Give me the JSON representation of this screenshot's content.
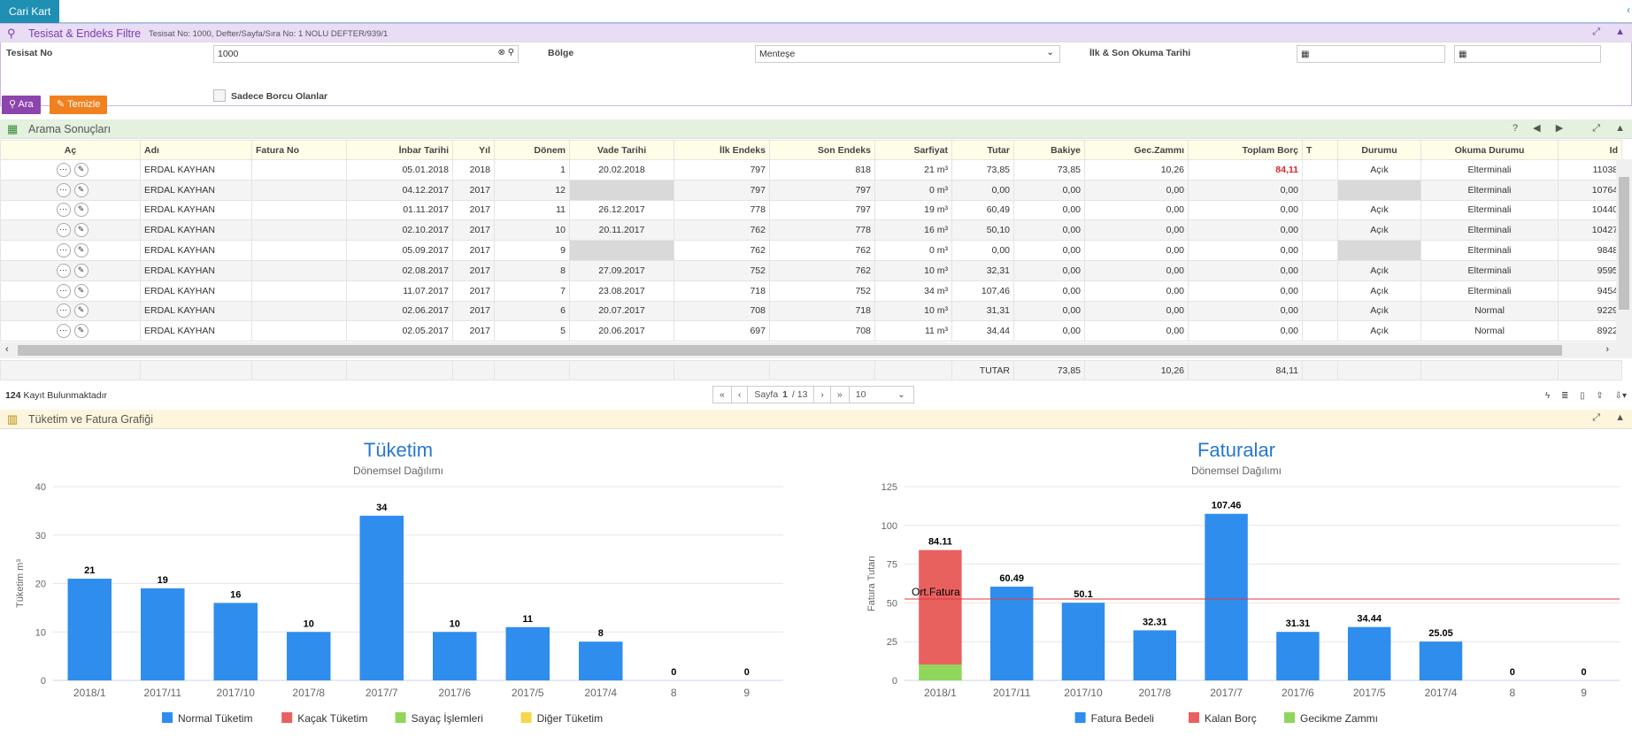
{
  "top_tab": "Cari Kart",
  "filter": {
    "title": "Tesisat & Endeks Filtre",
    "subtitle": "Tesisat No: 1000, Defter/Sayfa/Sıra No: 1 NOLU DEFTER/939/1",
    "tesisat_label": "Tesisat No",
    "tesisat_value": "1000",
    "bolge_label": "Bölge",
    "bolge_value": "Menteşe",
    "okuma_label": "İlk & Son Okuma Tarihi",
    "borclu_label": "Sadece Borcu Olanlar",
    "ara": "Ara",
    "temizle": "Temizle"
  },
  "results": {
    "title": "Arama Sonuçları",
    "columns": [
      "Aç",
      "Adı",
      "Fatura No",
      "İnbar Tarihi",
      "Yıl",
      "Dönem",
      "Vade Tarihi",
      "İlk Endeks",
      "Son Endeks",
      "Sarfiyat",
      "Tutar",
      "Bakiye",
      "Gec.Zammı",
      "Toplam Borç",
      "T",
      "Durumu",
      "Okuma Durumu",
      "Id"
    ],
    "rows": [
      [
        "ERDAL KAYHAN",
        "",
        "05.01.2018",
        "2018",
        "1",
        "20.02.2018",
        "797",
        "818",
        "21 m³",
        "73,85",
        "73,85",
        "10,26",
        "84,11",
        "",
        "Açık",
        "Elterminali",
        "11038"
      ],
      [
        "ERDAL KAYHAN",
        "",
        "04.12.2017",
        "2017",
        "12",
        "",
        "797",
        "797",
        "0 m³",
        "0,00",
        "0,00",
        "0,00",
        "0,00",
        "",
        "",
        "Elterminali",
        "10764"
      ],
      [
        "ERDAL KAYHAN",
        "",
        "01.11.2017",
        "2017",
        "11",
        "26.12.2017",
        "778",
        "797",
        "19 m³",
        "60,49",
        "0,00",
        "0,00",
        "0,00",
        "",
        "Açık",
        "Elterminali",
        "10440"
      ],
      [
        "ERDAL KAYHAN",
        "",
        "02.10.2017",
        "2017",
        "10",
        "20.11.2017",
        "762",
        "778",
        "16 m³",
        "50,10",
        "0,00",
        "0,00",
        "0,00",
        "",
        "Açık",
        "Elterminali",
        "10427"
      ],
      [
        "ERDAL KAYHAN",
        "",
        "05.09.2017",
        "2017",
        "9",
        "",
        "762",
        "762",
        "0 m³",
        "0,00",
        "0,00",
        "0,00",
        "0,00",
        "",
        "",
        "Elterminali",
        "9848"
      ],
      [
        "ERDAL KAYHAN",
        "",
        "02.08.2017",
        "2017",
        "8",
        "27.09.2017",
        "752",
        "762",
        "10 m³",
        "32,31",
        "0,00",
        "0,00",
        "0,00",
        "",
        "Açık",
        "Elterminali",
        "9595"
      ],
      [
        "ERDAL KAYHAN",
        "",
        "11.07.2017",
        "2017",
        "7",
        "23.08.2017",
        "718",
        "752",
        "34 m³",
        "107,46",
        "0,00",
        "0,00",
        "0,00",
        "",
        "Açık",
        "Elterminali",
        "9454"
      ],
      [
        "ERDAL KAYHAN",
        "",
        "02.06.2017",
        "2017",
        "6",
        "20.07.2017",
        "708",
        "718",
        "10 m³",
        "31,31",
        "0,00",
        "0,00",
        "0,00",
        "",
        "Açık",
        "Normal",
        "9229"
      ],
      [
        "ERDAL KAYHAN",
        "",
        "02.05.2017",
        "2017",
        "5",
        "20.06.2017",
        "697",
        "708",
        "11 m³",
        "34,44",
        "0,00",
        "0,00",
        "0,00",
        "",
        "Açık",
        "Normal",
        "8922"
      ]
    ],
    "totals": {
      "label": "TUTAR",
      "bakiye": "73,85",
      "gec": "10,26",
      "toplam": "84,11"
    },
    "count_num": "124",
    "count_text": "Kayıt Bulunmaktadır",
    "pager": {
      "first": "«",
      "prev": "‹",
      "page_label": "Sayfa",
      "page": "1",
      "of": "/ 13",
      "next": "›",
      "last": "»",
      "size": "10"
    }
  },
  "chart_panel_title": "Tüketim ve Fatura Grafiği",
  "chart_data": [
    {
      "type": "bar",
      "title": "Tüketim",
      "subtitle": "Dönemsel Dağılımı",
      "ylabel": "Tüketim m³",
      "ylim": [
        0,
        40
      ],
      "yticks": [
        0,
        10,
        20,
        30,
        40
      ],
      "categories": [
        "2018/1",
        "2017/11",
        "2017/10",
        "2017/8",
        "2017/7",
        "2017/6",
        "2017/5",
        "2017/4",
        "8",
        "9"
      ],
      "series": [
        {
          "name": "Normal Tüketim",
          "color": "#2f8ded",
          "values": [
            21,
            19,
            16,
            10,
            34,
            10,
            11,
            8,
            0,
            0
          ]
        },
        {
          "name": "Kaçak Tüketim",
          "color": "#e8615f",
          "values": [
            0,
            0,
            0,
            0,
            0,
            0,
            0,
            0,
            0,
            0
          ]
        },
        {
          "name": "Sayaç İşlemleri",
          "color": "#90d65a",
          "values": [
            0,
            0,
            0,
            0,
            0,
            0,
            0,
            0,
            0,
            0
          ]
        },
        {
          "name": "Diğer Tüketim",
          "color": "#f5d84a",
          "values": [
            0,
            0,
            0,
            0,
            0,
            0,
            0,
            0,
            0,
            0
          ]
        }
      ],
      "labels": [
        "21",
        "19",
        "16",
        "10",
        "34",
        "10",
        "11",
        "8",
        "0",
        "0"
      ]
    },
    {
      "type": "bar",
      "title": "Faturalar",
      "subtitle": "Dönemsel Dağılımı",
      "ylabel": "Fatura Tutarı",
      "ylim": [
        0,
        125
      ],
      "yticks": [
        0,
        25,
        50,
        75,
        100,
        125
      ],
      "categories": [
        "2018/1",
        "2017/11",
        "2017/10",
        "2017/8",
        "2017/7",
        "2017/6",
        "2017/5",
        "2017/4",
        "8",
        "9"
      ],
      "series": [
        {
          "name": "Fatura Bedeli",
          "color": "#2f8ded",
          "values": [
            0,
            60.49,
            50.1,
            32.31,
            107.46,
            31.31,
            34.44,
            25.05,
            0,
            0
          ]
        },
        {
          "name": "Kalan Borç",
          "color": "#e8615f",
          "values": [
            73.85,
            0,
            0,
            0,
            0,
            0,
            0,
            0,
            0,
            0
          ]
        },
        {
          "name": "Gecikme Zammı",
          "color": "#90d65a",
          "values": [
            10.26,
            0,
            0,
            0,
            0,
            0,
            0,
            0,
            0,
            0
          ]
        }
      ],
      "labels": [
        "84.11",
        "60.49",
        "50.1",
        "32.31",
        "107.46",
        "31.31",
        "34.44",
        "25.05",
        "0",
        "0"
      ],
      "plotline": {
        "label": "Ort.Fatura",
        "value": 52.5,
        "color": "#e8353a"
      }
    }
  ]
}
